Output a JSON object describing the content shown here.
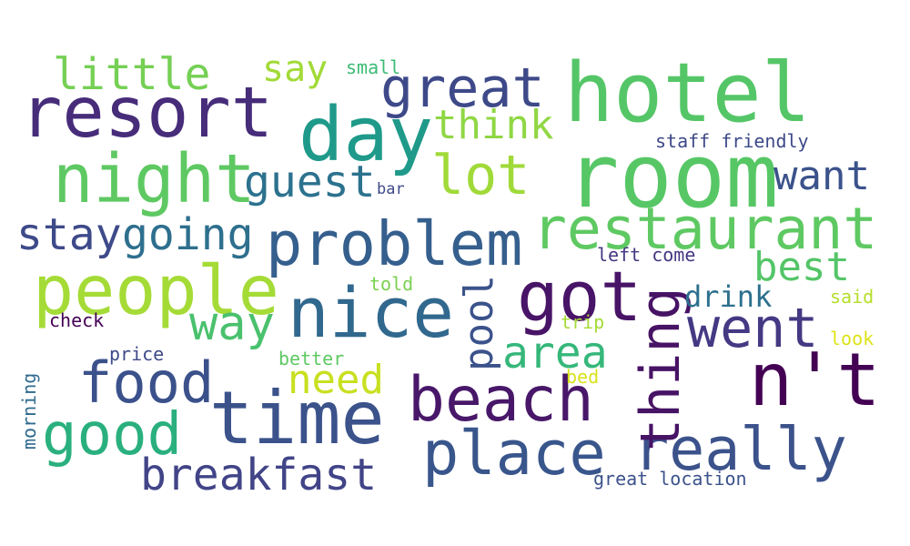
{
  "words": {
    "hotel": {
      "text": "hotel",
      "color": "#55c667"
    },
    "room": {
      "text": "room",
      "color": "#57c766"
    },
    "resort": {
      "text": "resort",
      "color": "#472c7a"
    },
    "day": {
      "text": "day",
      "color": "#1f9a8a"
    },
    "night": {
      "text": "night",
      "color": "#5ec962"
    },
    "nt": {
      "text": "n't",
      "color": "#440154"
    },
    "time": {
      "text": "time",
      "color": "#3b528b"
    },
    "restaurant": {
      "text": "restaurant",
      "color": "#5ec962"
    },
    "people": {
      "text": "people",
      "color": "#a5db36"
    },
    "beach": {
      "text": "beach",
      "color": "#481769"
    },
    "nice": {
      "text": "nice",
      "color": "#31688e"
    },
    "really": {
      "text": "really",
      "color": "#3b528b"
    },
    "place": {
      "text": "place",
      "color": "#39568c"
    },
    "problem": {
      "text": "problem",
      "color": "#355f8d"
    },
    "got": {
      "text": "got",
      "color": "#481467"
    },
    "thing": {
      "text": "thing",
      "color": "#471365"
    },
    "good": {
      "text": "good",
      "color": "#2ab07f"
    },
    "food": {
      "text": "food",
      "color": "#3b518b"
    },
    "great": {
      "text": "great",
      "color": "#3e4989"
    },
    "went": {
      "text": "went",
      "color": "#443983"
    },
    "lot": {
      "text": "lot",
      "color": "#a0da39"
    },
    "breakfast": {
      "text": "breakfast",
      "color": "#414487"
    },
    "guest": {
      "text": "guest",
      "color": "#2c728e"
    },
    "way": {
      "text": "way",
      "color": "#4ac16d"
    },
    "little": {
      "text": "little",
      "color": "#75d054"
    },
    "area": {
      "text": "area",
      "color": "#35b779"
    },
    "stay": {
      "text": "stay",
      "color": "#3e4a89"
    },
    "going": {
      "text": "going",
      "color": "#2e6f8e"
    },
    "pool": {
      "text": "pool",
      "color": "#3b528b"
    },
    "need": {
      "text": "need",
      "color": "#c8e020"
    },
    "best": {
      "text": "best",
      "color": "#54c568"
    },
    "want": {
      "text": "want",
      "color": "#3b528b"
    },
    "think": {
      "text": "think",
      "color": "#8fd744"
    },
    "say": {
      "text": "say",
      "color": "#a2da37"
    },
    "drink": {
      "text": "drink",
      "color": "#2d708e"
    },
    "staff_friendly": {
      "text": "staff friendly",
      "color": "#3e4989"
    },
    "great_location": {
      "text": "great location",
      "color": "#3b528b"
    },
    "left_come": {
      "text": "left come",
      "color": "#453781"
    },
    "small": {
      "text": "small",
      "color": "#3cbb75"
    },
    "check": {
      "text": "check",
      "color": "#440154"
    },
    "price": {
      "text": "price",
      "color": "#3e4a89"
    },
    "better": {
      "text": "better",
      "color": "#5ec962"
    },
    "told": {
      "text": "told",
      "color": "#7ad151"
    },
    "trip": {
      "text": "trip",
      "color": "#a5db36"
    },
    "said": {
      "text": "said",
      "color": "#b5de2b"
    },
    "look": {
      "text": "look",
      "color": "#dde318"
    },
    "bed": {
      "text": "bed",
      "color": "#d8e219"
    },
    "bar": {
      "text": "bar",
      "color": "#3e4989"
    },
    "morning": {
      "text": "morning",
      "color": "#306a8e"
    }
  }
}
